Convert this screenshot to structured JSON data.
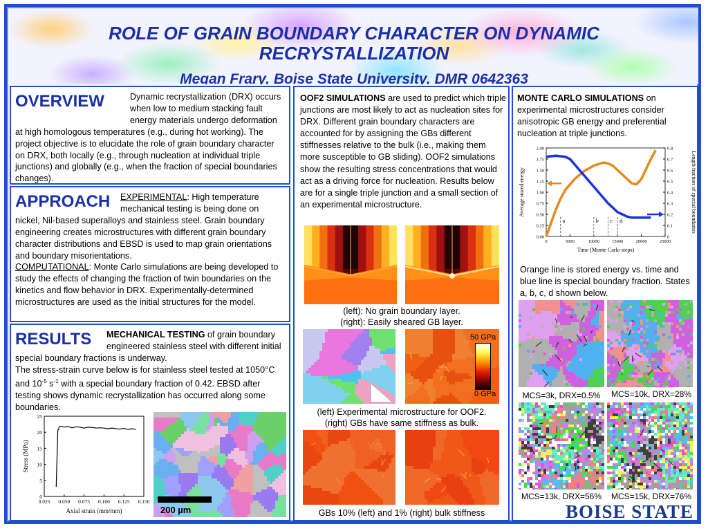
{
  "header": {
    "title_line1": "ROLE OF GRAIN BOUNDARY CHARACTER ON DYNAMIC",
    "title_line2": "RECRYSTALLIZATION",
    "subtitle": "Megan Frary, Boise State University, DMR 0642363"
  },
  "overview": {
    "heading": "OVERVIEW",
    "text": "Dynamic recrystallization (DRX) occurs when low to medium stacking fault energy materials undergo deformation at high homologous temperatures (e.g., during hot working). The project objective is to elucidate the role of grain boundary character on DRX, both locally (e.g., through nucleation at individual triple junctions) and globally (e.g., when the fraction of special boundaries changes)."
  },
  "approach": {
    "heading": "APPROACH",
    "experimental_label": "EXPERIMENTAL",
    "experimental_text": ": High temperature mechanical testing is being done on nickel, Nil-based superalloys and stainless steel. Grain boundary engineering creates microstructures with different grain boundary character distributions and EBSD is used to map grain orientations and boundary misorientations.",
    "computational_label": "COMPUTATIONAL",
    "computational_text": ": Monte Carlo simulations are being developed to study the effects of changing the fraction of twin boundaries on the kinetics and flow behavior in DRX. Experimentally-determined microstructures are used as the initial structures for the model."
  },
  "results": {
    "heading": "RESULTS",
    "mt_label": "MECHANICAL TESTING",
    "mt_text_1": " of grain boundary engineered stainless steel with different initial special boundary fractions is underway.",
    "mt_text_2": "The stress-strain curve below is for stainless steel tested at 1050°C and 10",
    "exp": "-5",
    "unit_s": " s",
    "exp2": "-1",
    "mt_text_3": " with a special boundary fraction of 0.42.  EBSD after testing shows dynamic recrystallization has occurred along some boundaries.",
    "scale_bar": "200 µm"
  },
  "oof2": {
    "label": "OOF2 SIMULATIONS",
    "text": " are used to predict which triple junctions are most likely to act as nucleation sites for DRX. Different grain boundary characters are accounted for by assigning the GBs different stiffnesses relative to the bulk (i.e., making them more susceptible to GB sliding).  OOF2 simulations show the resulting stress concentrations that would act as a driving force for nucleation.  Results below are for a single triple junction and a small section of an experimental microstructure.",
    "caption1_line1": "(left): No grain boundary layer.",
    "caption1_line2": "(right): Easily sheared GB layer.",
    "colorbar_top": "50 GPa",
    "colorbar_bottom": "0 GPa",
    "caption2_line1": "(left) Experimental microstructure for OOF2.",
    "caption2_line2": "(right) GBs have same stiffness as bulk.",
    "caption3": "GBs 10% (left) and 1% (right) bulk stiffness"
  },
  "monte_carlo": {
    "label": "MONTE CARLO SIMULATIONS",
    "text": " on experimental microstructures consider anisotropic GB energy and preferential nucleation at triple junctions.",
    "caption": "Orange line is stored energy vs. time and blue line is special boundary fraction. States a, b, c, d shown below.",
    "labels": [
      "MCS=3k, DRX=0.5%",
      "MCS=10k, DRX=28%",
      "MCS=13k, DRX=56%",
      "MCS=15k, DRX=76%"
    ],
    "logo": "BOISE STATE"
  },
  "chart_data": [
    {
      "type": "line",
      "title": "",
      "xlabel": "Axial strain (mm/mm)",
      "ylabel": "Stress (MPa)",
      "xlim": [
        0.025,
        0.15
      ],
      "ylim": [
        0,
        25
      ],
      "xticks": [
        "0.025",
        "0.050",
        "0.075",
        "0.100",
        "0.125",
        "0.150"
      ],
      "yticks": [
        "0",
        "5",
        "10",
        "15",
        "20",
        "25"
      ],
      "series": [
        {
          "x": [
            0.04,
            0.042,
            0.044,
            0.046,
            0.05,
            0.055,
            0.06,
            0.065,
            0.07,
            0.075,
            0.08,
            0.085,
            0.09,
            0.095,
            0.1,
            0.105,
            0.11,
            0.115,
            0.12,
            0.125,
            0.13,
            0.135,
            0.14
          ],
          "y": [
            3,
            20.5,
            21.7,
            21.9,
            21.6,
            21.8,
            21.4,
            21.7,
            21.6,
            21.3,
            21.6,
            21.5,
            21.3,
            21.4,
            21.3,
            21.1,
            21.3,
            21.1,
            21.0,
            21.2,
            20.9,
            21.1,
            20.9
          ]
        }
      ]
    },
    {
      "type": "line",
      "title": "",
      "xlabel": "Time (Monte Carlo steps)",
      "ylabel": "Average stored energy",
      "y2label": "Length fraction of special boundaries",
      "xlim": [
        0,
        25000
      ],
      "ylim": [
        0,
        2.0
      ],
      "y2lim": [
        0,
        0.8
      ],
      "xticks": [
        "0",
        "5000",
        "10000",
        "15000",
        "20000",
        "25000"
      ],
      "yticks": [
        "0.00",
        "0.25",
        "0.50",
        "0.75",
        "1.00",
        "1.25",
        "1.50",
        "1.75",
        "2.00"
      ],
      "y2ticks": [
        "0",
        "0.1",
        "0.2",
        "0.3",
        "0.4",
        "0.5",
        "0.6",
        "0.7",
        "0.8"
      ],
      "state_markers": [
        {
          "label": "a",
          "x": 3000
        },
        {
          "label": "b",
          "x": 10000
        },
        {
          "label": "c",
          "x": 13000
        },
        {
          "label": "d",
          "x": 15000
        }
      ],
      "series": [
        {
          "color": "#e8891a",
          "axis": "left",
          "x": [
            0,
            1000,
            2000,
            3000,
            4000,
            6000,
            8000,
            10000,
            12000,
            13000,
            14000,
            16000,
            18000,
            19000,
            20000,
            22000,
            23000
          ],
          "y": [
            0.0,
            0.3,
            0.6,
            0.85,
            1.05,
            1.3,
            1.48,
            1.6,
            1.67,
            1.65,
            1.6,
            1.4,
            1.2,
            1.18,
            1.3,
            1.75,
            1.95
          ]
        },
        {
          "color": "#1a2fe0",
          "axis": "right",
          "x": [
            0,
            2000,
            4000,
            5000,
            6000,
            8000,
            10000,
            12000,
            13000,
            14000,
            15000,
            16000,
            17000,
            18000,
            20000,
            22000
          ],
          "y": [
            0.72,
            0.73,
            0.72,
            0.7,
            0.65,
            0.55,
            0.45,
            0.35,
            0.3,
            0.26,
            0.22,
            0.2,
            0.18,
            0.17,
            0.17,
            0.17
          ]
        }
      ]
    }
  ]
}
